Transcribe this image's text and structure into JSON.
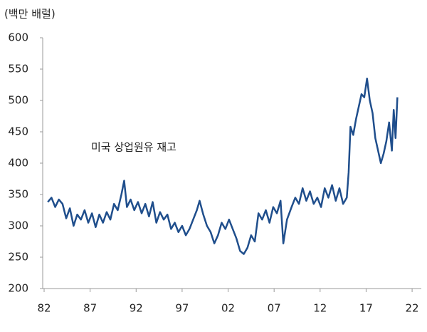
{
  "chart_data": {
    "type": "line",
    "unit_label": "(백만 배럴)",
    "annotation": "미국 상업원유 재고",
    "x": [
      1982.4,
      1982.8,
      1983.2,
      1983.6,
      1984.0,
      1984.4,
      1984.8,
      1985.2,
      1985.6,
      1986.0,
      1986.4,
      1986.8,
      1987.2,
      1987.6,
      1988.0,
      1988.4,
      1988.8,
      1989.2,
      1989.6,
      1990.0,
      1990.4,
      1990.7,
      1991.0,
      1991.4,
      1991.8,
      1992.2,
      1992.6,
      1993.0,
      1993.4,
      1993.8,
      1994.2,
      1994.6,
      1995.0,
      1995.4,
      1995.8,
      1996.2,
      1996.6,
      1997.0,
      1997.4,
      1997.8,
      1998.2,
      1998.6,
      1998.9,
      1999.3,
      1999.7,
      2000.1,
      2000.5,
      2000.9,
      2001.3,
      2001.7,
      2002.1,
      2002.5,
      2002.9,
      2003.3,
      2003.7,
      2004.1,
      2004.5,
      2004.9,
      2005.3,
      2005.7,
      2006.1,
      2006.5,
      2006.9,
      2007.3,
      2007.7,
      2008.0,
      2008.4,
      2008.9,
      2009.3,
      2009.7,
      2010.1,
      2010.5,
      2010.9,
      2011.3,
      2011.7,
      2012.1,
      2012.5,
      2012.9,
      2013.3,
      2013.7,
      2014.1,
      2014.5,
      2014.9,
      2015.1,
      2015.3,
      2015.6,
      2015.9,
      2016.2,
      2016.5,
      2016.8,
      2017.1,
      2017.4,
      2017.7,
      2018.0,
      2018.3,
      2018.6,
      2018.9,
      2019.2,
      2019.5,
      2019.8,
      2020.0,
      2020.2,
      2020.4
    ],
    "series": [
      {
        "name": "미국 상업원유 재고",
        "color": "#1f4e8c",
        "values": [
          338,
          345,
          330,
          342,
          335,
          312,
          328,
          300,
          318,
          310,
          325,
          305,
          320,
          298,
          318,
          305,
          322,
          310,
          335,
          325,
          350,
          372,
          330,
          342,
          325,
          338,
          320,
          335,
          315,
          338,
          305,
          322,
          310,
          318,
          295,
          305,
          290,
          300,
          285,
          295,
          310,
          325,
          340,
          318,
          300,
          290,
          272,
          285,
          305,
          295,
          310,
          295,
          280,
          260,
          255,
          265,
          285,
          275,
          320,
          310,
          325,
          305,
          330,
          320,
          340,
          272,
          310,
          330,
          345,
          335,
          360,
          340,
          355,
          335,
          345,
          330,
          360,
          345,
          365,
          340,
          360,
          335,
          345,
          385,
          458,
          445,
          470,
          490,
          510,
          505,
          535,
          500,
          480,
          440,
          420,
          400,
          415,
          435,
          465,
          420,
          485,
          440,
          505
        ]
      }
    ],
    "xlim": [
      1982,
      2023
    ],
    "xticks": [
      {
        "value": 1982,
        "label": "82"
      },
      {
        "value": 1987,
        "label": "87"
      },
      {
        "value": 1992,
        "label": "92"
      },
      {
        "value": 1997,
        "label": "97"
      },
      {
        "value": 2002,
        "label": "02"
      },
      {
        "value": 2007,
        "label": "07"
      },
      {
        "value": 2012,
        "label": "12"
      },
      {
        "value": 2017,
        "label": "17"
      },
      {
        "value": 2022,
        "label": "22"
      }
    ],
    "ylim": [
      200,
      600
    ],
    "yticks": [
      200,
      250,
      300,
      350,
      400,
      450,
      500,
      550,
      600
    ]
  }
}
